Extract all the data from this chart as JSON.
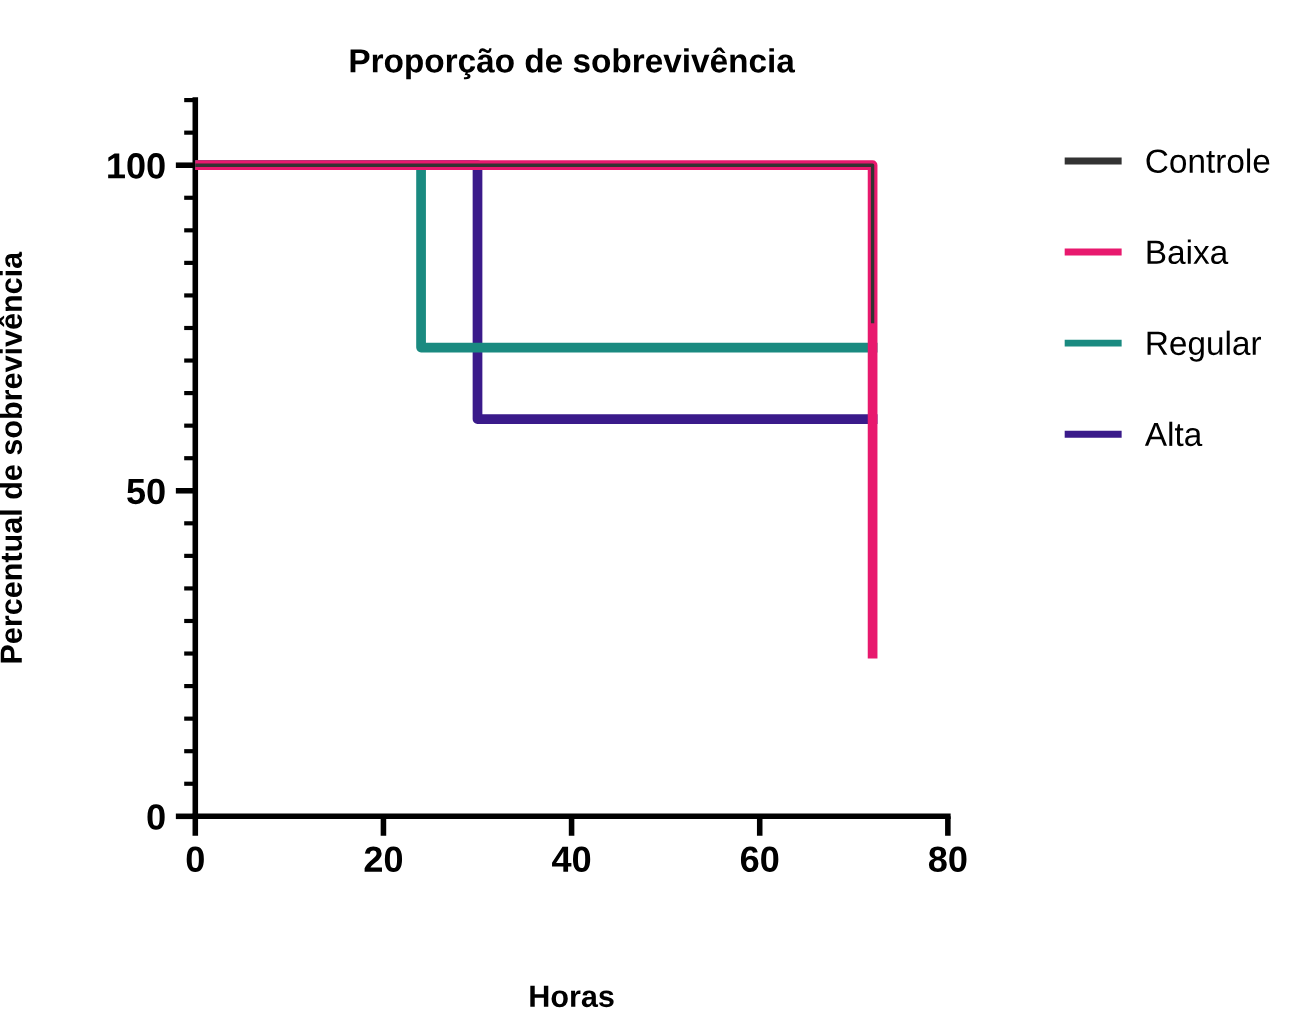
{
  "chart_data": {
    "type": "step",
    "title": "Proporção de sobrevivência",
    "xlabel": "Horas",
    "ylabel": "Percentual de sobrevivência",
    "series": [
      {
        "name": "Controle",
        "color": "#333333",
        "x": [
          0,
          72,
          72
        ],
        "values": [
          100,
          100,
          76
        ]
      },
      {
        "name": "Baixa",
        "color": "#e8196e",
        "x": [
          0,
          72,
          72
        ],
        "values": [
          100,
          100,
          25
        ]
      },
      {
        "name": "Regular",
        "color": "#1a8a80",
        "x": [
          0,
          24,
          24,
          72
        ],
        "values": [
          100,
          100,
          72,
          72
        ]
      },
      {
        "name": "Alta",
        "color": "#3a1a8a",
        "x": [
          0,
          30,
          30,
          72
        ],
        "values": [
          100,
          100,
          61,
          61
        ]
      }
    ],
    "xlim": [
      0,
      80
    ],
    "xticks": [
      0,
      20,
      40,
      60,
      80
    ],
    "ylim": [
      0,
      110
    ],
    "yticks": [
      0,
      50,
      100
    ],
    "grid": false,
    "legend": "right",
    "line_style": "solid"
  }
}
